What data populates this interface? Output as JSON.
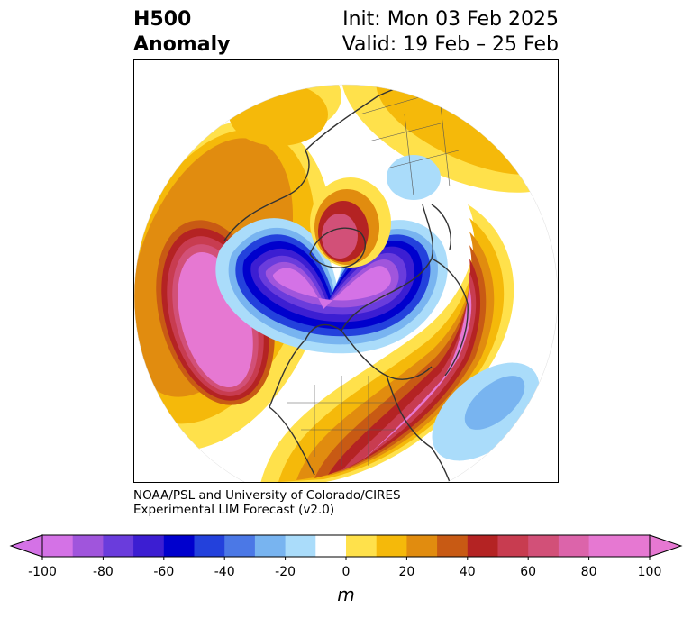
{
  "header": {
    "title_line1": "H500",
    "title_line2": "Anomaly",
    "init": "Init: Mon 03 Feb 2025",
    "valid": "Valid: 19 Feb – 25 Feb"
  },
  "credit": {
    "line1": "NOAA/PSL and University of Colorado/CIRES",
    "line2": "Experimental LIM Forecast (v2.0)"
  },
  "colorbar": {
    "ticks": [
      "-100",
      "-80",
      "-60",
      "-40",
      "-20",
      "0",
      "20",
      "40",
      "60",
      "80",
      "100"
    ],
    "units": "m",
    "levels": [
      -100,
      -90,
      -80,
      -70,
      -60,
      -50,
      -40,
      -30,
      -20,
      -10,
      10,
      20,
      30,
      40,
      50,
      60,
      70,
      80,
      90,
      100
    ],
    "colors": [
      "#d472e6",
      "#a055dc",
      "#6a3cdc",
      "#3c1ed2",
      "#0000cd",
      "#2341dc",
      "#4b78e6",
      "#78b4f0",
      "#aadcfa",
      "#ffffff",
      "#ffe14b",
      "#f5b90a",
      "#e18c0f",
      "#c85a14",
      "#b42323",
      "#c83c50",
      "#d25078",
      "#dc64aa",
      "#e678d2",
      "#e678d2"
    ],
    "under_color": "#d472e6",
    "over_color": "#e678d2"
  },
  "map": {
    "projection": "north-polar-stereographic",
    "field": "500 hPa geopotential height anomaly"
  }
}
